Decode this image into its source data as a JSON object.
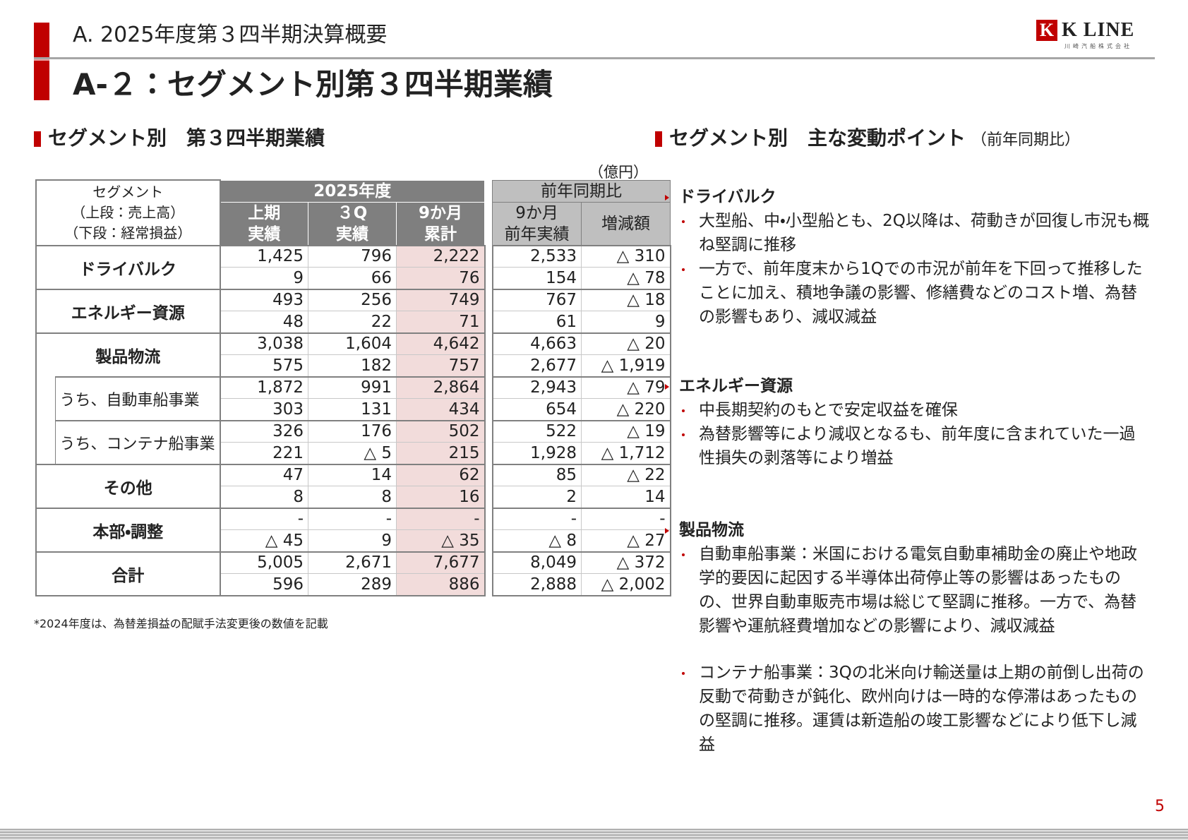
{
  "header": {
    "section": "A. 2025年度第３四半期決算概要",
    "title": "A-２：セグメント別第３四半期業績",
    "logo_mark": "K",
    "logo_name": "K LINE",
    "logo_sub": "川崎汽船株式会社"
  },
  "left": {
    "heading": "セグメント別　第３四半期業績",
    "unit": "（億円）",
    "table": {
      "segment_header": [
        "セグメント",
        "（上段：売上高）",
        "（下段：経常損益）"
      ],
      "group1": "2025年度",
      "group1_columns": [
        [
          "上期",
          "実績"
        ],
        [
          "３Q",
          "実績"
        ],
        [
          "9か月",
          "累計"
        ]
      ],
      "group2": "前年同期比",
      "group2_columns": [
        [
          "9か月",
          "前年実績"
        ],
        [
          "増減額"
        ]
      ],
      "rows": [
        {
          "label": "ドライバルク",
          "values": [
            [
              "1,425",
              "796",
              "2,222",
              "2,533",
              "△ 310"
            ],
            [
              "9",
              "66",
              "76",
              "154",
              "△ 78"
            ]
          ]
        },
        {
          "label": "エネルギー資源",
          "values": [
            [
              "493",
              "256",
              "749",
              "767",
              "△ 18"
            ],
            [
              "48",
              "22",
              "71",
              "61",
              "9"
            ]
          ]
        },
        {
          "label": "製品物流",
          "values": [
            [
              "3,038",
              "1,604",
              "4,642",
              "4,663",
              "△ 20"
            ],
            [
              "575",
              "182",
              "757",
              "2,677",
              "△ 1,919"
            ]
          ]
        },
        {
          "label": "うち、自動車船事業",
          "indent": true,
          "values": [
            [
              "1,872",
              "991",
              "2,864",
              "2,943",
              "△ 79"
            ],
            [
              "303",
              "131",
              "434",
              "654",
              "△ 220"
            ]
          ]
        },
        {
          "label": "うち、コンテナ船事業",
          "indent": true,
          "values": [
            [
              "326",
              "176",
              "502",
              "522",
              "△ 19"
            ],
            [
              "221",
              "△ 5",
              "215",
              "1,928",
              "△ 1,712"
            ]
          ]
        },
        {
          "label": "その他",
          "values": [
            [
              "47",
              "14",
              "62",
              "85",
              "△ 22"
            ],
            [
              "8",
              "8",
              "16",
              "2",
              "14"
            ]
          ]
        },
        {
          "label": "本部・調整",
          "values": [
            [
              "-",
              "-",
              "-",
              "-",
              "-"
            ],
            [
              "△ 45",
              "9",
              "△ 35",
              "△ 8",
              "△ 27"
            ]
          ]
        },
        {
          "label": "合計",
          "values": [
            [
              "5,005",
              "2,671",
              "7,677",
              "8,049",
              "△ 372"
            ],
            [
              "596",
              "289",
              "886",
              "2,888",
              "△ 2,002"
            ]
          ]
        }
      ]
    },
    "footnote": "*2024年度は、為替差損益の配賦手法変更後の数値を記載"
  },
  "right": {
    "heading": "セグメント別　主な変動ポイント",
    "note": "（前年同期比）",
    "sections": [
      {
        "title": "ドライバルク",
        "bullets": [
          "大型船、中・小型船とも、2Q以降は、荷動きが回復し市況も概ね堅調に推移",
          "一方で、前年度末から1Qでの市況が前年を下回って推移したことに加え、積地争議の影響、修繕費などのコスト増、為替の影響もあり、減収減益"
        ]
      },
      {
        "title": "エネルギー資源",
        "bullets": [
          "中長期契約のもとで安定収益を確保",
          "為替影響等により減収となるも、前年度に含まれていた一過性損失の剥落等により増益"
        ]
      },
      {
        "title": "製品物流",
        "bullets": [
          "自動車船事業：米国における電気自動車補助金の廃止や地政学的要因に起因する半導体出荷停止等の影響はあったものの、世界自動車販売市場は総じて堅調に推移。一方で、為替影響や運航経費増加などの影響により、減収減益",
          "コンテナ船事業：3Qの北米向け輸送量は上期の前倒し出荷の反動で荷動きが鈍化、欧州向けは一時的な停滞はあったものの堅調に推移。運賃は新造船の竣工影響などにより低下し減益"
        ]
      }
    ]
  },
  "page_number": "5"
}
